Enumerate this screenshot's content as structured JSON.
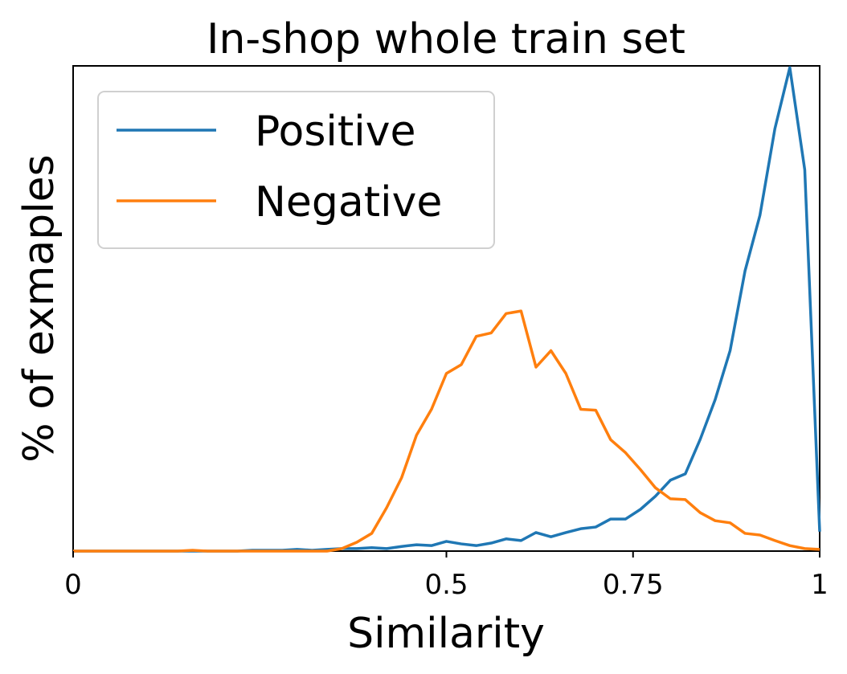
{
  "chart_data": {
    "type": "line",
    "title": "In-shop whole train set",
    "xlabel": "Similarity",
    "ylabel": "% of exmaples",
    "xlim": [
      0,
      1
    ],
    "ylim": [
      0,
      0.115
    ],
    "yticks_shown": false,
    "xticks": [
      {
        "value": 0,
        "label": "0"
      },
      {
        "value": 0.5,
        "label": "0.5"
      },
      {
        "value": 0.75,
        "label": "0.75"
      },
      {
        "value": 1,
        "label": "1"
      }
    ],
    "grid": false,
    "legend": {
      "position": "top-left"
    },
    "x": [
      0.0,
      0.02,
      0.04,
      0.06,
      0.08,
      0.1,
      0.12,
      0.14,
      0.16,
      0.18,
      0.2,
      0.22,
      0.24,
      0.26,
      0.28,
      0.3,
      0.32,
      0.34,
      0.36,
      0.38,
      0.4,
      0.42,
      0.44,
      0.46,
      0.48,
      0.5,
      0.52,
      0.54,
      0.56,
      0.58,
      0.6,
      0.62,
      0.64,
      0.66,
      0.68,
      0.7,
      0.72,
      0.74,
      0.76,
      0.78,
      0.8,
      0.82,
      0.84,
      0.86,
      0.88,
      0.9,
      0.92,
      0.94,
      0.96,
      0.98,
      1.0
    ],
    "series": [
      {
        "name": "Positive",
        "color": "#1f77b4",
        "values": [
          0,
          0,
          0,
          0,
          0,
          0,
          0,
          0,
          0,
          0,
          0,
          0,
          0.0002,
          0.0002,
          0.0002,
          0.0004,
          0.0002,
          0.0004,
          0.0006,
          0.0006,
          0.0008,
          0.0006,
          0.0011,
          0.0015,
          0.0013,
          0.0023,
          0.0017,
          0.0013,
          0.0019,
          0.0029,
          0.0025,
          0.0044,
          0.0034,
          0.0044,
          0.0053,
          0.0057,
          0.0076,
          0.0076,
          0.0099,
          0.013,
          0.0168,
          0.0183,
          0.0265,
          0.0359,
          0.0475,
          0.0664,
          0.0796,
          0.1001,
          0.1146,
          0.0904,
          0.0046
        ]
      },
      {
        "name": "Negative",
        "color": "#ff7f0e",
        "values": [
          0,
          0,
          0,
          0,
          0,
          0,
          0,
          0,
          0.0002,
          0,
          0,
          0,
          0,
          0,
          0,
          0,
          0,
          0,
          0.0006,
          0.0021,
          0.0042,
          0.0103,
          0.0174,
          0.0275,
          0.0336,
          0.0421,
          0.0442,
          0.0509,
          0.0517,
          0.0563,
          0.0569,
          0.0436,
          0.0475,
          0.0421,
          0.0336,
          0.0334,
          0.0264,
          0.0233,
          0.0193,
          0.015,
          0.0124,
          0.0122,
          0.0091,
          0.0072,
          0.0067,
          0.0042,
          0.0038,
          0.0025,
          0.0013,
          0.0006,
          0.0004
        ]
      }
    ]
  }
}
